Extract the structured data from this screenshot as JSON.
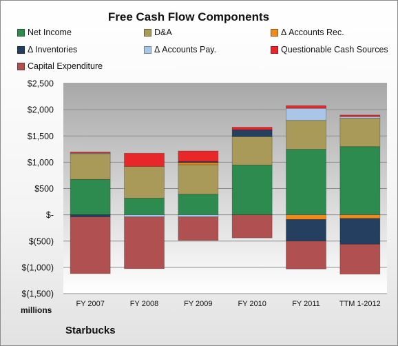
{
  "chart_data": {
    "type": "bar",
    "stacked": true,
    "title": "Free Cash Flow Components",
    "categories": [
      "FY 2007",
      "FY 2008",
      "FY 2009",
      "FY 2010",
      "FY 2011",
      "TTM 1-2012"
    ],
    "series": [
      {
        "name": "Net Income",
        "color": "#2e8b4f",
        "values": [
          673,
          316,
          391,
          946,
          1246,
          1297
        ]
      },
      {
        "name": "D&A",
        "color": "#a99a5a",
        "values": [
          491,
          605,
          563,
          541,
          550,
          541
        ]
      },
      {
        "name": "Δ Accounts Rec.",
        "color": "#ef8a1f",
        "values": [
          0,
          0,
          40,
          0,
          -90,
          -70
        ]
      },
      {
        "name": "Δ Inventories",
        "color": "#243f60",
        "values": [
          -40,
          0,
          20,
          130,
          -410,
          -490
        ]
      },
      {
        "name": "Δ Accounts Pay.",
        "color": "#a9c6e8",
        "values": [
          10,
          -40,
          -40,
          0,
          230,
          30
        ]
      },
      {
        "name": "Questionable Cash Sources",
        "color": "#e8272a",
        "values": [
          20,
          250,
          200,
          50,
          50,
          30
        ]
      },
      {
        "name": "Capital Expenditure",
        "color": "#b05050",
        "values": [
          -1080,
          -985,
          -446,
          -440,
          -531,
          -570
        ]
      }
    ],
    "ylim": [
      -1500,
      2500
    ],
    "yticks": [
      -1500,
      -1000,
      -500,
      0,
      500,
      1000,
      1500,
      2000,
      2500
    ],
    "ytick_labels": [
      "$(1,500)",
      "$(1,000)",
      "$(500)",
      "$-",
      "$500",
      "$1,000",
      "$1,500",
      "$2,000",
      "$2,500"
    ],
    "ylabel": "millions",
    "legend_position": "top",
    "grid": true,
    "colors": {
      "plot_bg_top": "#a8a8a8",
      "plot_bg_bottom": "#ffffff",
      "gridline": "#8c8c8c"
    }
  },
  "footer": {
    "company": "Starbucks"
  }
}
